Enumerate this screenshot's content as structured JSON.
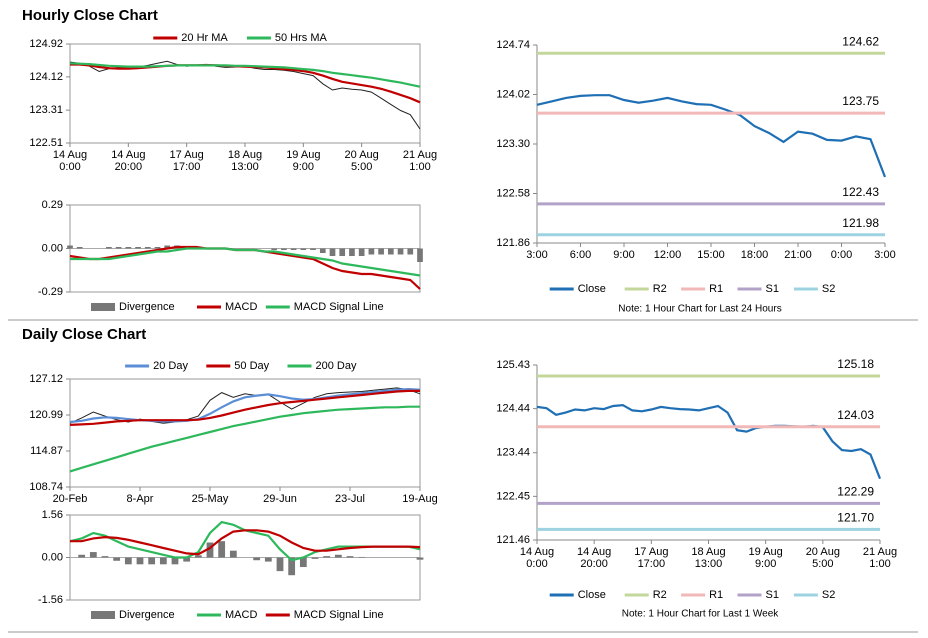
{
  "sections": [
    "Hourly Close Chart",
    "Daily Close Chart"
  ],
  "chart_data": [
    {
      "type": "line",
      "legend": "top",
      "categories": [
        "14 Aug\n0:00",
        null,
        null,
        null,
        null,
        null,
        "14 Aug\n20:00",
        null,
        null,
        null,
        null,
        null,
        "17 Aug\n17:00",
        null,
        null,
        null,
        null,
        null,
        "18 Aug\n13:00",
        null,
        null,
        null,
        null,
        null,
        "19 Aug\n9:00",
        null,
        null,
        null,
        null,
        null,
        "20 Aug\n5:00",
        null,
        null,
        null,
        null,
        null,
        "21 Aug\n1:00"
      ],
      "ylim": [
        122.51,
        124.92
      ],
      "yticks": [
        124.92,
        124.12,
        123.31,
        122.51
      ],
      "series": [
        {
          "style": "line",
          "color": "#222222",
          "values": [
            124.48,
            124.45,
            124.38,
            124.25,
            124.32,
            124.35,
            124.33,
            124.36,
            124.4,
            124.45,
            124.5,
            124.42,
            124.38,
            124.4,
            124.42,
            124.38,
            124.35,
            124.36,
            124.38,
            124.33,
            124.3,
            124.3,
            124.28,
            124.25,
            124.2,
            124.15,
            123.95,
            123.8,
            123.85,
            123.82,
            123.8,
            123.75,
            123.6,
            123.45,
            123.3,
            123.2,
            122.85
          ]
        },
        {
          "name": "20 Hr MA",
          "style": "line",
          "color": "#c00000",
          "values": [
            124.42,
            124.42,
            124.4,
            124.36,
            124.33,
            124.32,
            124.32,
            124.33,
            124.35,
            124.37,
            124.39,
            124.4,
            124.4,
            124.4,
            124.41,
            124.4,
            124.39,
            124.38,
            124.37,
            124.36,
            124.35,
            124.33,
            124.31,
            124.29,
            124.26,
            124.22,
            124.15,
            124.07,
            124.0,
            123.96,
            123.92,
            123.88,
            123.83,
            123.76,
            123.68,
            123.6,
            123.5
          ]
        },
        {
          "name": "50 Hrs MA",
          "style": "line",
          "color": "#2eb85c",
          "values": [
            124.45,
            124.44,
            124.43,
            124.41,
            124.39,
            124.38,
            124.37,
            124.37,
            124.37,
            124.38,
            124.39,
            124.4,
            124.4,
            124.4,
            124.4,
            124.4,
            124.4,
            124.39,
            124.39,
            124.38,
            124.37,
            124.36,
            124.35,
            124.33,
            124.31,
            124.29,
            124.26,
            124.22,
            124.19,
            124.16,
            124.13,
            124.1,
            124.06,
            124.02,
            123.98,
            123.93,
            123.88
          ]
        }
      ]
    },
    {
      "type": "line",
      "legend": "bottom",
      "categories": [
        null,
        null,
        null,
        null,
        null,
        null,
        null,
        null,
        null,
        null,
        null,
        null,
        null,
        null,
        null,
        null,
        null,
        null,
        null,
        null,
        null,
        null,
        null,
        null,
        null,
        null,
        null,
        null,
        null,
        null,
        null,
        null,
        null,
        null,
        null,
        null,
        null
      ],
      "ylim": [
        -0.29,
        0.29
      ],
      "yticks": [
        0.29,
        {
          "value": 0,
          "label": "0.00"
        },
        -0.29
      ],
      "series": [
        {
          "name": "Divergence",
          "style": "bar",
          "color": "#777777",
          "values": [
            0.02,
            0.01,
            0,
            0,
            0.01,
            0.01,
            0.01,
            0.01,
            0.01,
            0.01,
            0.02,
            0.02,
            0.01,
            0.01,
            0,
            0,
            0,
            0,
            0,
            0,
            0,
            -0.01,
            -0.01,
            -0.01,
            -0.01,
            -0.01,
            -0.03,
            -0.05,
            -0.05,
            -0.05,
            -0.05,
            -0.04,
            -0.04,
            -0.04,
            -0.04,
            -0.04,
            -0.09
          ]
        },
        {
          "name": "MACD",
          "style": "line",
          "color": "#c00000",
          "values": [
            -0.05,
            -0.06,
            -0.07,
            -0.07,
            -0.06,
            -0.05,
            -0.04,
            -0.03,
            -0.02,
            -0.01,
            0,
            0.01,
            0.01,
            0.01,
            0,
            0,
            0,
            -0.01,
            -0.01,
            -0.01,
            -0.02,
            -0.03,
            -0.04,
            -0.05,
            -0.06,
            -0.07,
            -0.1,
            -0.13,
            -0.15,
            -0.16,
            -0.17,
            -0.17,
            -0.18,
            -0.19,
            -0.2,
            -0.21,
            -0.27
          ]
        },
        {
          "name": "MACD Signal Line",
          "style": "line",
          "color": "#2eb85c",
          "values": [
            -0.07,
            -0.07,
            -0.07,
            -0.07,
            -0.07,
            -0.06,
            -0.05,
            -0.04,
            -0.03,
            -0.02,
            -0.02,
            -0.01,
            0,
            0,
            0,
            0,
            0,
            -0.01,
            -0.01,
            -0.01,
            -0.02,
            -0.02,
            -0.03,
            -0.04,
            -0.05,
            -0.06,
            -0.07,
            -0.08,
            -0.1,
            -0.11,
            -0.12,
            -0.13,
            -0.14,
            -0.15,
            -0.16,
            -0.17,
            -0.18
          ]
        }
      ]
    },
    {
      "type": "pivot",
      "legend": "bottom",
      "note": "Note: 1 Hour Chart for Last 24 Hours",
      "categories": [
        "3:00",
        null,
        null,
        "6:00",
        null,
        null,
        "9:00",
        null,
        null,
        "12:00",
        null,
        null,
        "15:00",
        null,
        null,
        "18:00",
        null,
        null,
        "21:00",
        null,
        null,
        "0:00",
        null,
        null,
        "3:00"
      ],
      "ylim": [
        121.86,
        124.74
      ],
      "yticks": [
        124.74,
        124.02,
        {
          "value": 123.3,
          "label": "123.30"
        },
        122.58,
        121.86
      ],
      "series": [
        {
          "name": "Close",
          "style": "line",
          "color": "#1f6fb5",
          "values": [
            123.87,
            123.92,
            123.97,
            124.0,
            124.01,
            124.01,
            123.94,
            123.9,
            123.93,
            123.97,
            123.92,
            123.88,
            123.87,
            123.8,
            123.72,
            123.56,
            123.46,
            123.33,
            123.48,
            123.45,
            123.36,
            123.35,
            123.41,
            123.37,
            122.82
          ]
        },
        {
          "name": "R2",
          "style": "level",
          "color": "#c4d79b",
          "level": 124.62
        },
        {
          "name": "R1",
          "style": "level",
          "color": "#f2b8b8",
          "level": 123.75
        },
        {
          "name": "S1",
          "style": "level",
          "color": "#b3a2c7",
          "level": 122.43
        },
        {
          "name": "S2",
          "style": "level",
          "color": "#9dd3e0",
          "level": 121.98
        }
      ]
    },
    {
      "type": "line",
      "legend": "top",
      "categories": [
        "20-Feb",
        null,
        null,
        null,
        null,
        null,
        "8-Apr",
        null,
        null,
        null,
        null,
        null,
        "25-May",
        null,
        null,
        null,
        null,
        null,
        "29-Jun",
        null,
        null,
        null,
        null,
        null,
        "23-Jul",
        null,
        null,
        null,
        null,
        null,
        "19-Aug"
      ],
      "ylim": [
        108.74,
        127.12
      ],
      "yticks": [
        127.12,
        120.99,
        114.87,
        108.74
      ],
      "series": [
        {
          "style": "line",
          "color": "#222222",
          "values": [
            119.6,
            120.5,
            121.5,
            120.8,
            120.2,
            119.8,
            120.3,
            119.9,
            119.6,
            119.8,
            120.2,
            120.8,
            123.5,
            124.8,
            124.0,
            124.6,
            124.3,
            124.5,
            123.2,
            122.0,
            123.0,
            124.0,
            124.6,
            124.8,
            124.9,
            125.0,
            125.2,
            125.4,
            125.6,
            125.3,
            124.6
          ]
        },
        {
          "name": "20 Day",
          "style": "line",
          "color": "#5b8ed6",
          "values": [
            119.8,
            120.0,
            120.4,
            120.6,
            120.5,
            120.3,
            120.1,
            120.0,
            119.9,
            119.9,
            120.0,
            120.3,
            121.2,
            122.3,
            123.3,
            124.0,
            124.3,
            124.5,
            124.2,
            123.8,
            123.6,
            123.7,
            124.0,
            124.3,
            124.5,
            124.7,
            124.9,
            125.1,
            125.3,
            125.4,
            125.3
          ]
        },
        {
          "name": "50 Day",
          "style": "line",
          "color": "#c00000",
          "values": [
            119.3,
            119.4,
            119.5,
            119.7,
            119.9,
            120.0,
            120.1,
            120.1,
            120.1,
            120.1,
            120.1,
            120.2,
            120.5,
            120.9,
            121.4,
            121.9,
            122.3,
            122.7,
            123.0,
            123.2,
            123.4,
            123.6,
            123.8,
            124.0,
            124.2,
            124.4,
            124.6,
            124.8,
            125.0,
            125.1,
            125.1
          ]
        },
        {
          "name": "200 Day",
          "style": "line",
          "color": "#2eb85c",
          "values": [
            111.4,
            112.0,
            112.6,
            113.2,
            113.8,
            114.4,
            115.0,
            115.6,
            116.1,
            116.6,
            117.1,
            117.6,
            118.1,
            118.6,
            119.1,
            119.5,
            119.9,
            120.3,
            120.7,
            121.0,
            121.3,
            121.5,
            121.7,
            121.9,
            122.0,
            122.1,
            122.2,
            122.3,
            122.3,
            122.4,
            122.4
          ]
        }
      ]
    },
    {
      "type": "line",
      "legend": "bottom",
      "categories": [
        null,
        null,
        null,
        null,
        null,
        null,
        null,
        null,
        null,
        null,
        null,
        null,
        null,
        null,
        null,
        null,
        null,
        null,
        null,
        null,
        null,
        null,
        null,
        null,
        null,
        null,
        null,
        null,
        null,
        null,
        null
      ],
      "ylim": [
        -1.56,
        1.56
      ],
      "yticks": [
        1.56,
        {
          "value": 0,
          "label": "0.00"
        },
        -1.56
      ],
      "series": [
        {
          "name": "Divergence",
          "style": "bar",
          "color": "#777777",
          "values": [
            0,
            0.1,
            0.2,
            0.05,
            -0.12,
            -0.25,
            -0.25,
            -0.25,
            -0.25,
            -0.25,
            -0.15,
            0.08,
            0.55,
            0.6,
            0.25,
            0,
            -0.1,
            -0.15,
            -0.5,
            -0.65,
            -0.35,
            -0.05,
            0.05,
            0.1,
            0.05,
            0.02,
            0,
            0,
            0,
            0,
            -0.08
          ]
        },
        {
          "name": "MACD",
          "style": "line",
          "color": "#2eb85c",
          "values": [
            0.6,
            0.7,
            0.9,
            0.8,
            0.6,
            0.4,
            0.3,
            0.2,
            0.1,
            0,
            0,
            0.2,
            0.9,
            1.3,
            1.2,
            1.0,
            0.9,
            0.8,
            0.3,
            -0.1,
            0,
            0.2,
            0.3,
            0.4,
            0.4,
            0.4,
            0.4,
            0.4,
            0.4,
            0.4,
            0.3
          ]
        },
        {
          "name": "MACD Signal Line",
          "style": "line",
          "color": "#c00000",
          "values": [
            0.6,
            0.6,
            0.7,
            0.75,
            0.72,
            0.65,
            0.55,
            0.45,
            0.35,
            0.25,
            0.15,
            0.12,
            0.35,
            0.7,
            0.95,
            1.0,
            1.0,
            0.95,
            0.8,
            0.55,
            0.35,
            0.25,
            0.25,
            0.3,
            0.35,
            0.38,
            0.4,
            0.4,
            0.4,
            0.4,
            0.38
          ]
        }
      ]
    },
    {
      "type": "pivot",
      "legend": "bottom",
      "note": "Note: 1 Hour Chart for Last 1 Week",
      "categories": [
        "14 Aug\n0:00",
        null,
        null,
        null,
        null,
        null,
        "14 Aug\n20:00",
        null,
        null,
        null,
        null,
        null,
        "17 Aug\n17:00",
        null,
        null,
        null,
        null,
        null,
        "18 Aug\n13:00",
        null,
        null,
        null,
        null,
        null,
        "19 Aug\n9:00",
        null,
        null,
        null,
        null,
        null,
        "20 Aug\n5:00",
        null,
        null,
        null,
        null,
        null,
        "21 Aug\n1:00"
      ],
      "ylim": [
        121.46,
        125.43
      ],
      "yticks": [
        125.43,
        124.44,
        123.44,
        122.45,
        121.46
      ],
      "series": [
        {
          "name": "Close",
          "style": "line",
          "color": "#1f6fb5",
          "values": [
            124.48,
            124.45,
            124.3,
            124.35,
            124.42,
            124.4,
            124.45,
            124.43,
            124.5,
            124.52,
            124.4,
            124.38,
            124.42,
            124.48,
            124.45,
            124.43,
            124.42,
            124.4,
            124.45,
            124.5,
            124.35,
            123.95,
            123.92,
            124.0,
            124.03,
            124.05,
            124.05,
            124.04,
            124.03,
            124.05,
            124.02,
            123.7,
            123.5,
            123.48,
            123.52,
            123.4,
            122.85
          ]
        },
        {
          "name": "R2",
          "style": "level",
          "color": "#c4d79b",
          "level": 125.18
        },
        {
          "name": "R1",
          "style": "level",
          "color": "#f2b8b8",
          "level": 124.03
        },
        {
          "name": "S1",
          "style": "level",
          "color": "#b3a2c7",
          "level": 122.29
        },
        {
          "name": "S2",
          "style": "level",
          "color": "#9dd3e0",
          "level": 121.7,
          "level_label": "121.70"
        }
      ]
    }
  ]
}
